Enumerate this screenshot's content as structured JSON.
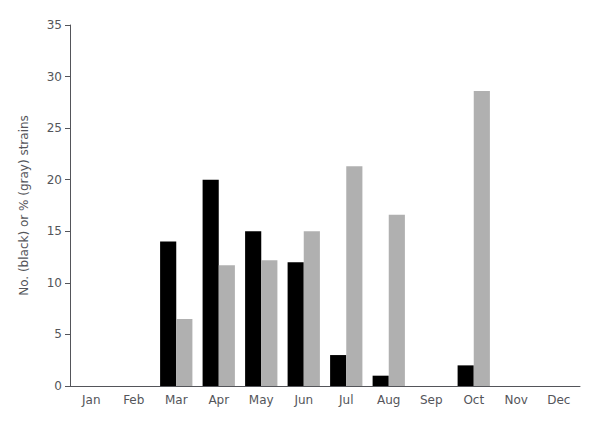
{
  "chart_data": {
    "type": "bar",
    "categories": [
      "Jan",
      "Feb",
      "Mar",
      "Apr",
      "May",
      "Jun",
      "Jul",
      "Aug",
      "Sep",
      "Oct",
      "Nov",
      "Dec"
    ],
    "series": [
      {
        "color": "#000000",
        "values": [
          0,
          0,
          14,
          20,
          15,
          12,
          3,
          1,
          0,
          2,
          0,
          0
        ]
      },
      {
        "color": "#b0b0b0",
        "values": [
          0,
          0,
          6.5,
          11.7,
          12.2,
          15,
          21.3,
          16.6,
          0,
          28.6,
          0,
          0
        ]
      }
    ],
    "ylabel": "No. (black) or % (gray) strains",
    "ylim": [
      0,
      35
    ],
    "yticks": [
      0,
      5,
      10,
      15,
      20,
      25,
      30,
      35
    ],
    "grid": false
  }
}
